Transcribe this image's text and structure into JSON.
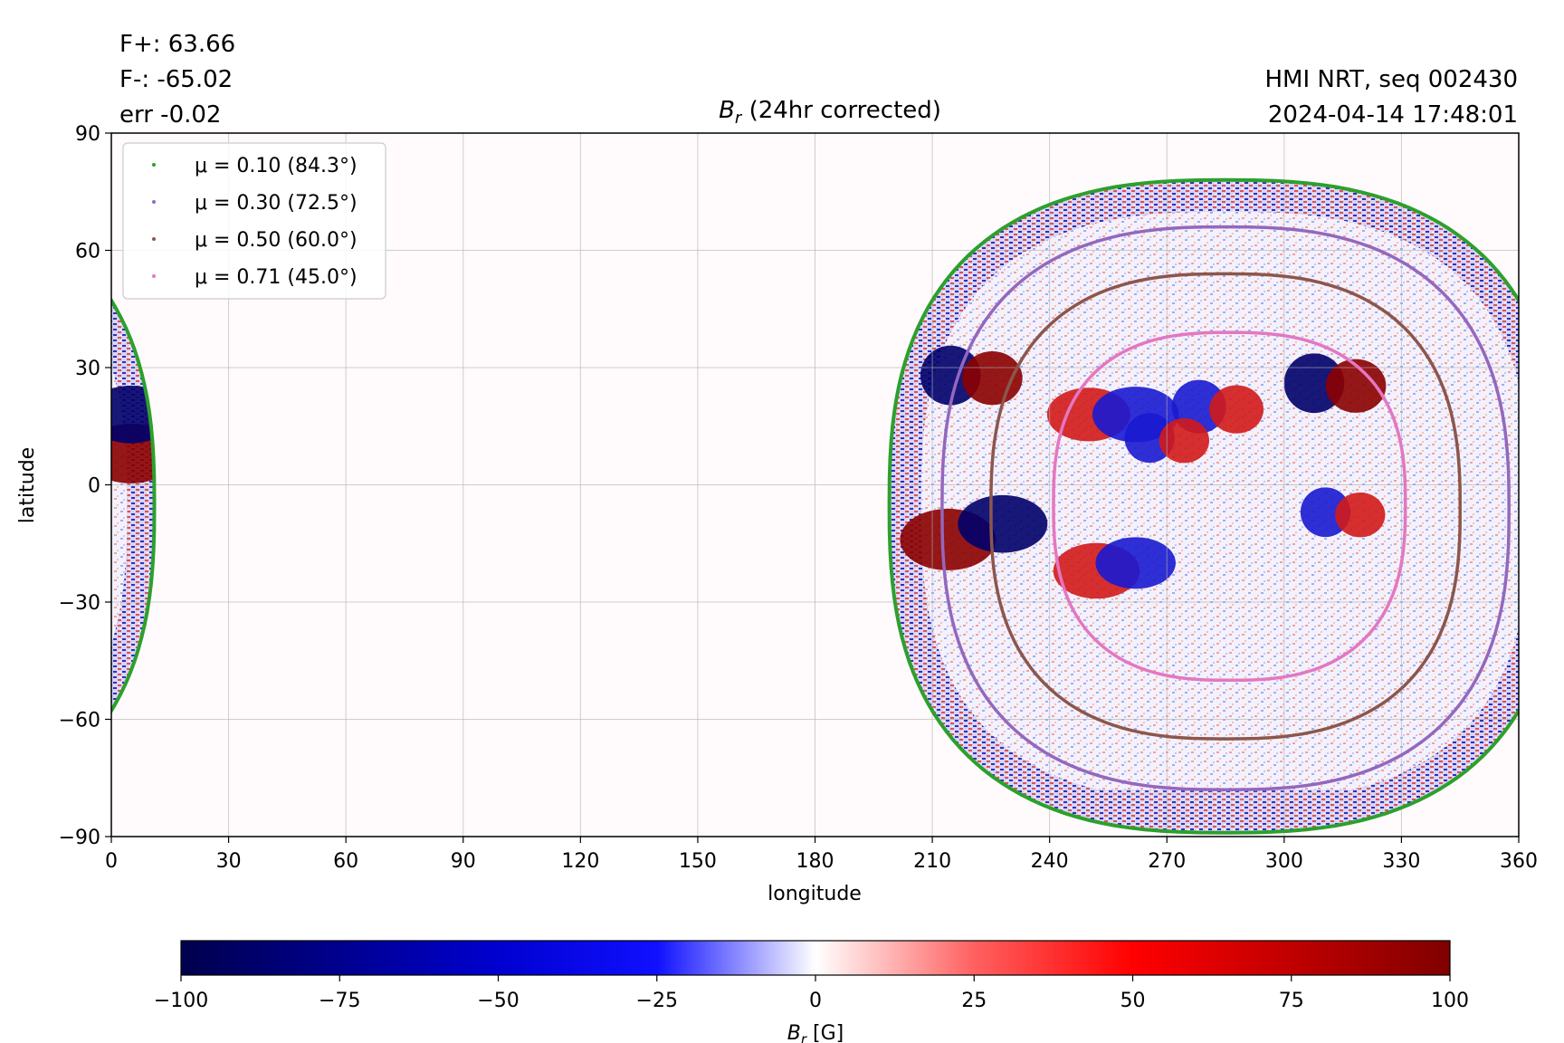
{
  "header": {
    "flux_plus": "F+: 63.66",
    "flux_minus": "F-: -65.02",
    "error": "err -0.02",
    "source": "HMI NRT, seq 002430",
    "timestamp": "2024-04-14 17:48:01"
  },
  "chart_data": {
    "type": "heatmap",
    "title_symbol": "B",
    "title_subscript": "r",
    "title_rest": " (24hr corrected)",
    "xlabel": "longitude",
    "ylabel": "latitude",
    "xlim": [
      0,
      360
    ],
    "ylim": [
      -90,
      90
    ],
    "xticks": [
      0,
      30,
      60,
      90,
      120,
      150,
      180,
      210,
      240,
      270,
      300,
      330,
      360
    ],
    "yticks": [
      90,
      60,
      30,
      0,
      -30,
      -60,
      -90
    ],
    "grid": true,
    "legend_position": "upper-left",
    "series": [
      {
        "name": "μ = 0.10 (84.3°)",
        "color": "#2ca02c",
        "contour": {
          "center_lon": 285,
          "center_lat": -5,
          "lon_halfwidth": 86,
          "lat_top": 78,
          "lat_bottom": -89
        }
      },
      {
        "name": "μ = 0.30 (72.5°)",
        "color": "#9467bd",
        "contour": {
          "center_lon": 285,
          "center_lat": -6,
          "lon_halfwidth": 72.5,
          "lat_top": 66,
          "lat_bottom": -78
        }
      },
      {
        "name": "μ = 0.50 (60.0°)",
        "color": "#8c564b",
        "contour": {
          "center_lon": 285,
          "center_lat": -6,
          "lon_halfwidth": 60,
          "lat_top": 54,
          "lat_bottom": -65
        }
      },
      {
        "name": "μ = 0.71 (45.0°)",
        "color": "#e377c2",
        "contour": {
          "center_lon": 286,
          "center_lat": -5,
          "lon_halfwidth": 45,
          "lat_top": 39,
          "lat_bottom": -50
        }
      }
    ],
    "active_regions": [
      {
        "lon": 220,
        "lat": 28,
        "polarity": "mixed",
        "strength": 95
      },
      {
        "lon": 214,
        "lat": -14,
        "polarity": "positive",
        "strength": 100
      },
      {
        "lon": 228,
        "lat": -10,
        "polarity": "negative",
        "strength": 90
      },
      {
        "lon": 250,
        "lat": 18,
        "polarity": "positive",
        "strength": 80
      },
      {
        "lon": 262,
        "lat": 18,
        "polarity": "negative",
        "strength": 85
      },
      {
        "lon": 283,
        "lat": 20,
        "polarity": "mixed",
        "strength": 80
      },
      {
        "lon": 270,
        "lat": 12,
        "polarity": "mixed",
        "strength": 70
      },
      {
        "lon": 313,
        "lat": 26,
        "polarity": "mixed",
        "strength": 95
      },
      {
        "lon": 315,
        "lat": -7,
        "polarity": "mixed",
        "strength": 70
      },
      {
        "lon": 252,
        "lat": -22,
        "polarity": "positive",
        "strength": 85
      },
      {
        "lon": 262,
        "lat": -20,
        "polarity": "negative",
        "strength": 75
      },
      {
        "lon": 5,
        "lat": 8,
        "polarity": "positive",
        "strength": 95
      },
      {
        "lon": 5,
        "lat": 18,
        "polarity": "negative",
        "strength": 90
      }
    ],
    "colorbar": {
      "label_symbol": "B",
      "label_subscript": "r",
      "label_unit": " [G]",
      "range": [
        -100,
        100
      ],
      "ticks": [
        "−100",
        "−75",
        "−50",
        "−25",
        "0",
        "25",
        "50",
        "75",
        "100"
      ],
      "colormap": "seismic"
    }
  }
}
